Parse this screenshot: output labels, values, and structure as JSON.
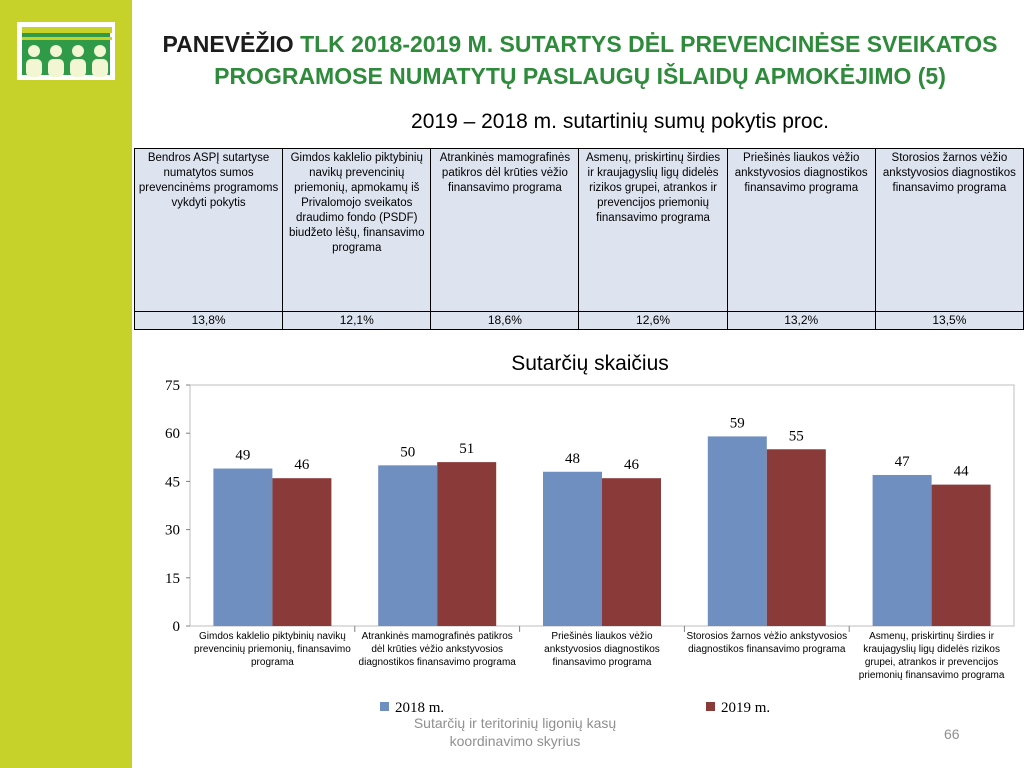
{
  "slide": {
    "title_dark": "PANEVĖŽIO",
    "title_green": " TLK 2018-2019 M. SUTARTYS DĖL PREVENCINĖSE SVEIKATOS PROGRAMOSE NUMATYTŲ PASLAUGŲ IŠLAIDŲ APMOKĖJIMO  (5)",
    "subtitle": "2019 – 2018 m. sutartinių sumų pokytis proc.",
    "footer": "Sutarčių ir teritorinių ligonių kasų koordinavimo skyrius",
    "page_number": "66"
  },
  "table": {
    "headers": [
      "Bendros ASPĮ sutartyse numatytos sumos prevencinėms programoms vykdyti pokytis",
      "Gimdos kaklelio piktybinių navikų prevencinių priemonių, apmokamų iš Privalomojo sveikatos draudimo fondo (PSDF) biudžeto lėšų, finansavimo programa",
      "Atrankinės mamografinės patikros dėl krūties vėžio finansavimo programa",
      "Asmenų, priskirtinų širdies ir kraujagyslių ligų didelės rizikos grupei, atrankos ir prevencijos priemonių finansavimo programa",
      "Priešinės liaukos vėžio ankstyvosios diagnostikos finansavimo programa",
      "Storosios žarnos vėžio ankstyvosios diagnostikos finansavimo programa"
    ],
    "values": [
      "13,8%",
      "12,1%",
      "18,6%",
      "12,6%",
      "13,2%",
      "13,5%"
    ]
  },
  "chart_data": {
    "type": "bar",
    "title": "Sutarčių skaičius",
    "categories": [
      "Gimdos kaklelio piktybinių navikų prevencinių priemonių, finansavimo programa",
      "Atrankinės mamografinės patikros dėl krūties vėžio ankstyvosios diagnostikos finansavimo programa",
      "Priešinės liaukos vėžio ankstyvosios diagnostikos finansavimo programa",
      "Storosios žarnos vėžio ankstyvosios diagnostikos finansavimo programa",
      "Asmenų, priskirtinų širdies ir kraujagyslių ligų didelės rizikos grupei, atrankos ir prevencijos priemonių finansavimo programa"
    ],
    "series": [
      {
        "name": "2018 m.",
        "values": [
          49,
          50,
          48,
          59,
          47
        ],
        "color": "#6f8fc0"
      },
      {
        "name": "2019 m.",
        "values": [
          46,
          51,
          46,
          55,
          44
        ],
        "color": "#8b3a3a"
      }
    ],
    "ylim": [
      0,
      75
    ],
    "yticks": [
      0,
      15,
      30,
      45,
      60,
      75
    ],
    "grid": false,
    "legend": "bottom"
  },
  "colors": {
    "sidebar": "#c6d22a",
    "title_green": "#2e8b3b",
    "table_fill": "#dde3ef"
  },
  "icons": [
    "logo-people-icon"
  ]
}
